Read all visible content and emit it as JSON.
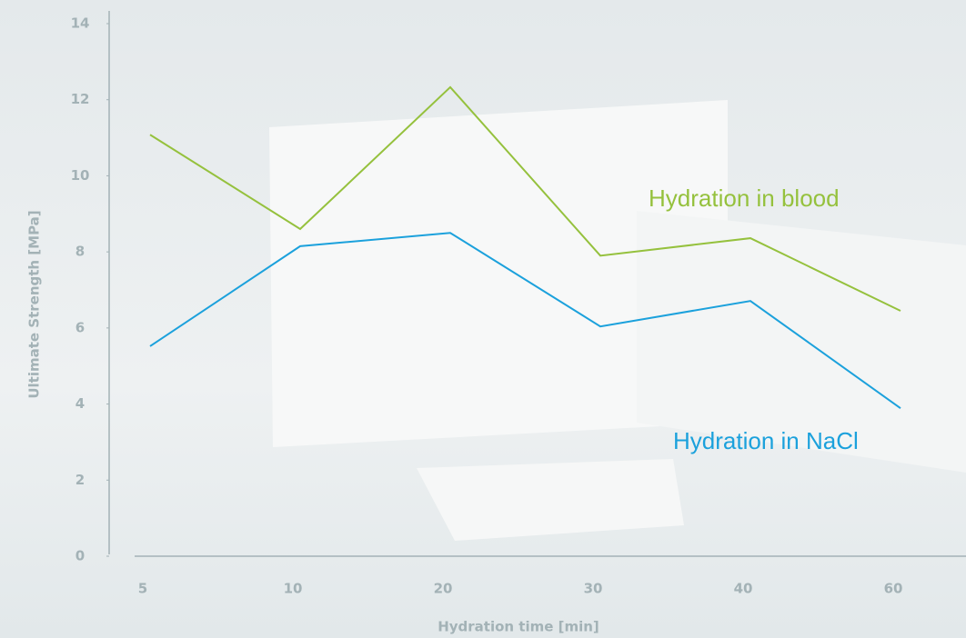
{
  "chart_data": {
    "type": "line",
    "x_label": "Hydration time [min]",
    "y_label": "Ultimate Strength [MPa]",
    "categories": [
      "5",
      "10",
      "20",
      "30",
      "40",
      "60"
    ],
    "series": [
      {
        "name": "Hydration in blood",
        "color": "#95c13d",
        "values": [
          11.08,
          8.6,
          12.33,
          7.9,
          8.36,
          6.45
        ]
      },
      {
        "name": "Hydration in NaCl",
        "color": "#1ba1dc",
        "values": [
          5.52,
          8.15,
          8.5,
          6.04,
          6.71,
          3.89
        ]
      }
    ],
    "ylim": [
      0,
      14
    ],
    "yticks": [
      0,
      2,
      4,
      6,
      8,
      10,
      12,
      14
    ]
  }
}
